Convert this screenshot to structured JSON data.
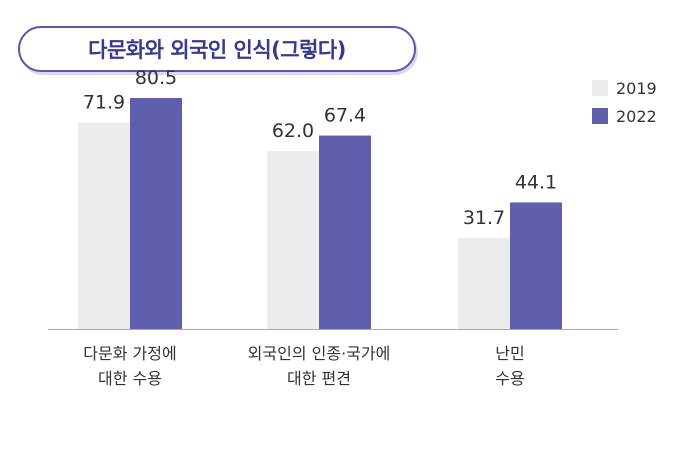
{
  "title": "다문화와 외국인 인식(그렇다)",
  "colors": {
    "y2019": "#ecebee",
    "y2022": "#5f5fad",
    "accent": "#3a3a8c",
    "baseline": "#aaaaaa"
  },
  "chart_data": {
    "type": "bar",
    "title": "다문화와 외국인 인식(그렇다)",
    "categories": [
      [
        "다문화 가정에",
        "대한 수용"
      ],
      [
        "외국인의 인종·국가에",
        "대한 편견"
      ],
      [
        "난민",
        "수용"
      ]
    ],
    "series": [
      {
        "name": "2019",
        "values": [
          71.9,
          62.0,
          31.7
        ],
        "labels": [
          "71.9",
          "62.0",
          "31.7"
        ]
      },
      {
        "name": "2022",
        "values": [
          80.5,
          67.4,
          44.1
        ],
        "labels": [
          "80.5",
          "67.4",
          "44.1"
        ]
      }
    ],
    "ylim": [
      0,
      100
    ],
    "grid": false,
    "legend": "top-right"
  }
}
